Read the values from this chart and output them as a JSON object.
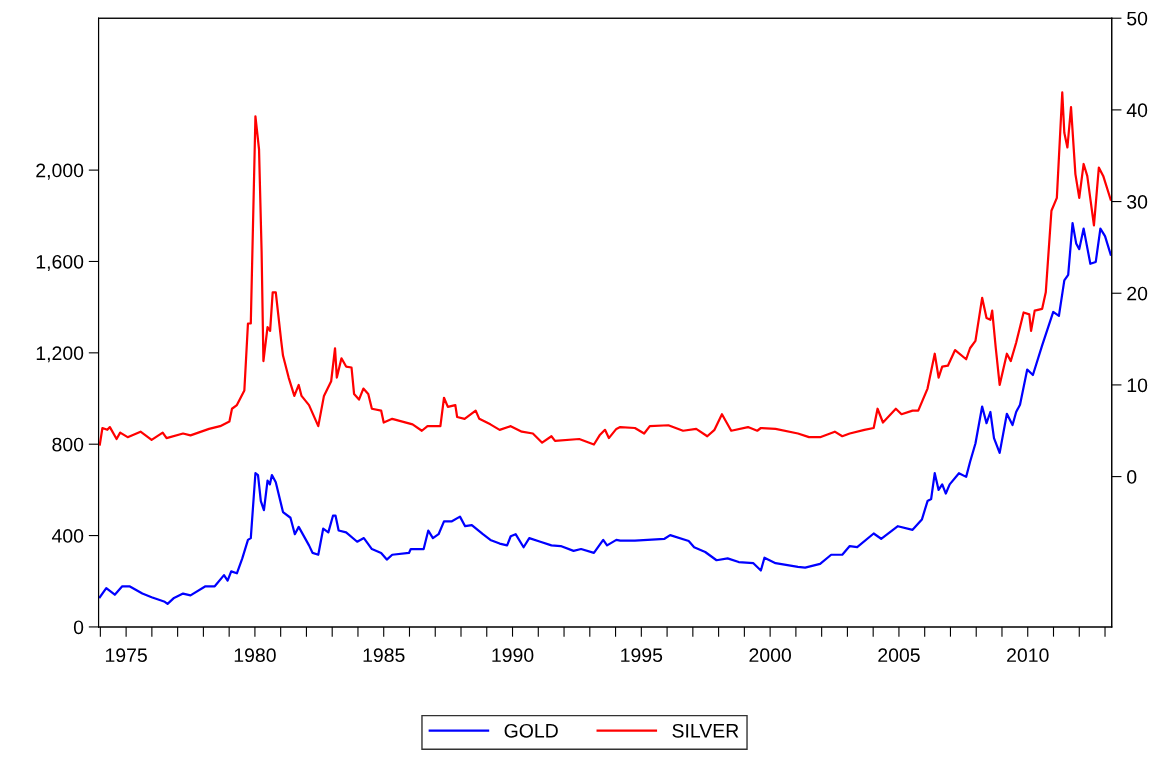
{
  "chart_data": {
    "type": "line",
    "xlim": [
      1973.93,
      2013.26
    ],
    "xticks": [
      {
        "value": 1974,
        "label": null
      },
      1975,
      {
        "value": 1976,
        "label": null
      },
      {
        "value": 1977,
        "label": null
      },
      {
        "value": 1978,
        "label": null
      },
      {
        "value": 1979,
        "label": null
      },
      1980,
      {
        "value": 1981,
        "label": null
      },
      {
        "value": 1982,
        "label": null
      },
      {
        "value": 1983,
        "label": null
      },
      {
        "value": 1984,
        "label": null
      },
      1985,
      {
        "value": 1986,
        "label": null
      },
      {
        "value": 1987,
        "label": null
      },
      {
        "value": 1988,
        "label": null
      },
      {
        "value": 1989,
        "label": null
      },
      1990,
      {
        "value": 1991,
        "label": null
      },
      {
        "value": 1992,
        "label": null
      },
      {
        "value": 1993,
        "label": null
      },
      {
        "value": 1994,
        "label": null
      },
      1995,
      {
        "value": 1996,
        "label": null
      },
      {
        "value": 1997,
        "label": null
      },
      {
        "value": 1998,
        "label": null
      },
      {
        "value": 1999,
        "label": null
      },
      2000,
      {
        "value": 2001,
        "label": null
      },
      {
        "value": 2002,
        "label": null
      },
      {
        "value": 2003,
        "label": null
      },
      {
        "value": 2004,
        "label": null
      },
      2005,
      {
        "value": 2006,
        "label": null
      },
      {
        "value": 2007,
        "label": null
      },
      {
        "value": 2008,
        "label": null
      },
      {
        "value": 2009,
        "label": null
      },
      2010,
      {
        "value": 2011,
        "label": null
      },
      {
        "value": 2012,
        "label": null
      },
      {
        "value": 2013,
        "label": null
      }
    ],
    "ylim": [
      0,
      2665
    ],
    "yticks": [
      0,
      400,
      800,
      {
        "value": 1200,
        "label": "1,200"
      },
      {
        "value": 1600,
        "label": "1,600"
      },
      {
        "value": 2000,
        "label": "2,000"
      }
    ],
    "y2lim": [
      -16.4,
      50
    ],
    "y2ticks": [
      0,
      10,
      20,
      30,
      40,
      50
    ],
    "grid": false,
    "legend": "bottom",
    "series": [
      {
        "name": "GOLD",
        "color": "#0000ff",
        "x": [
          1973.98,
          1974.23,
          1974.56,
          1974.85,
          1975.13,
          1975.63,
          1975.99,
          1976.5,
          1976.61,
          1976.86,
          1977.21,
          1977.5,
          1978.08,
          1978.44,
          1978.8,
          1978.94,
          1979.08,
          1979.3,
          1979.51,
          1979.73,
          1979.84,
          1980.02,
          1980.12,
          1980.23,
          1980.35,
          1980.49,
          1980.58,
          1980.66,
          1980.81,
          1981.09,
          1981.38,
          1981.55,
          1981.7,
          1982.1,
          1982.24,
          1982.46,
          1982.65,
          1982.85,
          1983.03,
          1983.13,
          1983.25,
          1983.54,
          1983.97,
          1984.23,
          1984.54,
          1984.9,
          1985.12,
          1985.33,
          1985.98,
          1986.05,
          1986.55,
          1986.73,
          1986.91,
          1987.13,
          1987.34,
          1987.63,
          1987.96,
          1988.16,
          1988.42,
          1988.85,
          1989.14,
          1989.5,
          1989.79,
          1989.93,
          1990.12,
          1990.43,
          1990.65,
          1991.08,
          1991.51,
          1991.87,
          1992.37,
          1992.66,
          1993.16,
          1993.52,
          1993.67,
          1994.03,
          1994.18,
          1994.75,
          1995.9,
          1996.12,
          1996.84,
          1997.05,
          1997.48,
          1997.92,
          1998.35,
          1998.78,
          1999.35,
          1999.64,
          1999.78,
          2000.21,
          2001.08,
          2001.36,
          2001.94,
          2002.37,
          2002.8,
          2003.09,
          2003.38,
          2004.02,
          2004.31,
          2004.96,
          2005.53,
          2005.89,
          2006.11,
          2006.25,
          2006.39,
          2006.54,
          2006.68,
          2006.82,
          2006.97,
          2007.33,
          2007.61,
          2007.76,
          2007.97,
          2008.23,
          2008.4,
          2008.55,
          2008.69,
          2008.91,
          2009.19,
          2009.41,
          2009.55,
          2009.7,
          2009.98,
          2010.2,
          2010.56,
          2010.99,
          2011.21,
          2011.42,
          2011.57,
          2011.74,
          2011.88,
          2012.0,
          2012.17,
          2012.43,
          2012.64,
          2012.82,
          2013.0,
          2013.22
        ],
        "values": [
          130,
          170,
          141,
          178,
          178,
          146,
          130,
          110,
          101,
          127,
          146,
          138,
          178,
          178,
          227,
          203,
          243,
          235,
          300,
          381,
          389,
          673,
          665,
          551,
          511,
          641,
          624,
          665,
          633,
          503,
          478,
          406,
          438,
          357,
          324,
          316,
          430,
          414,
          487,
          487,
          422,
          414,
          373,
          389,
          341,
          324,
          295,
          316,
          324,
          341,
          341,
          422,
          389,
          406,
          462,
          462,
          483,
          441,
          446,
          406,
          381,
          365,
          357,
          397,
          406,
          349,
          389,
          373,
          357,
          354,
          333,
          341,
          324,
          381,
          357,
          381,
          378,
          378,
          386,
          402,
          376,
          349,
          328,
          292,
          300,
          284,
          279,
          247,
          303,
          279,
          263,
          260,
          276,
          316,
          316,
          354,
          349,
          409,
          386,
          441,
          425,
          470,
          551,
          560,
          673,
          600,
          624,
          584,
          624,
          673,
          657,
          722,
          803,
          965,
          892,
          941,
          827,
          762,
          933,
          884,
          941,
          973,
          1127,
          1103,
          1233,
          1379,
          1362,
          1517,
          1541,
          1768,
          1679,
          1654,
          1744,
          1590,
          1598,
          1744,
          1711,
          1630
        ]
      },
      {
        "name": "SILVER",
        "color": "#ff0000",
        "axis": "y2",
        "x": [
          1973.98,
          1974.08,
          1974.27,
          1974.37,
          1974.63,
          1974.77,
          1975.06,
          1975.56,
          1975.99,
          1976.42,
          1976.57,
          1977.21,
          1977.5,
          1978.22,
          1978.65,
          1979.01,
          1979.11,
          1979.3,
          1979.59,
          1979.73,
          1979.84,
          1980.02,
          1980.16,
          1980.26,
          1980.33,
          1980.49,
          1980.59,
          1980.69,
          1980.81,
          1981.02,
          1981.09,
          1981.31,
          1981.53,
          1981.7,
          1981.81,
          1982.1,
          1982.46,
          1982.68,
          1982.96,
          1983.11,
          1983.18,
          1983.36,
          1983.54,
          1983.75,
          1983.85,
          1984.04,
          1984.21,
          1984.4,
          1984.54,
          1984.9,
          1985.0,
          1985.33,
          1986.12,
          1986.48,
          1986.7,
          1987.2,
          1987.34,
          1987.49,
          1987.78,
          1987.85,
          1988.14,
          1988.57,
          1988.71,
          1989.14,
          1989.5,
          1989.93,
          1990.36,
          1990.79,
          1991.15,
          1991.51,
          1991.65,
          1992.59,
          1993.16,
          1993.38,
          1993.59,
          1993.74,
          1994.03,
          1994.18,
          1994.75,
          1995.11,
          1995.33,
          1996.05,
          1996.62,
          1997.13,
          1997.56,
          1997.84,
          1998.13,
          1998.49,
          1999.14,
          1999.5,
          1999.64,
          2000.21,
          2001.08,
          2001.51,
          2001.94,
          2002.51,
          2002.8,
          2003.09,
          2003.66,
          2004.02,
          2004.17,
          2004.38,
          2004.88,
          2005.1,
          2005.53,
          2005.75,
          2006.11,
          2006.39,
          2006.54,
          2006.68,
          2006.9,
          2007.18,
          2007.61,
          2007.76,
          2007.97,
          2008.23,
          2008.4,
          2008.55,
          2008.62,
          2008.76,
          2008.91,
          2009.19,
          2009.34,
          2009.55,
          2009.84,
          2010.06,
          2010.13,
          2010.27,
          2010.56,
          2010.7,
          2010.92,
          2011.13,
          2011.34,
          2011.42,
          2011.54,
          2011.68,
          2011.85,
          2012.0,
          2012.17,
          2012.31,
          2012.57,
          2012.76,
          2012.93,
          2013.22
        ],
        "values": [
          3.5,
          5.3,
          5.1,
          5.4,
          4.1,
          4.8,
          4.3,
          4.9,
          4.0,
          4.8,
          4.2,
          4.7,
          4.5,
          5.2,
          5.5,
          6.0,
          7.4,
          7.8,
          9.4,
          16.7,
          16.7,
          39.3,
          35.7,
          24.5,
          12.6,
          16.3,
          15.9,
          20.1,
          20.1,
          14.8,
          13.2,
          10.8,
          8.8,
          10.0,
          8.8,
          7.8,
          5.5,
          8.8,
          10.4,
          14.0,
          10.8,
          12.9,
          12.0,
          11.9,
          9.0,
          8.4,
          9.6,
          9.0,
          7.4,
          7.2,
          5.9,
          6.3,
          5.7,
          5.0,
          5.5,
          5.5,
          8.6,
          7.6,
          7.8,
          6.5,
          6.3,
          7.2,
          6.3,
          5.7,
          5.1,
          5.5,
          4.9,
          4.7,
          3.7,
          4.4,
          3.9,
          4.1,
          3.5,
          4.5,
          5.1,
          4.2,
          5.2,
          5.4,
          5.3,
          4.7,
          5.5,
          5.6,
          5.0,
          5.2,
          4.4,
          5.1,
          6.8,
          5.0,
          5.4,
          5.0,
          5.3,
          5.2,
          4.7,
          4.3,
          4.3,
          4.9,
          4.4,
          4.7,
          5.1,
          5.3,
          7.4,
          5.9,
          7.4,
          6.8,
          7.2,
          7.2,
          9.6,
          13.4,
          10.8,
          12.0,
          12.1,
          13.8,
          12.8,
          14.0,
          14.8,
          19.5,
          17.3,
          17.1,
          18.1,
          14.0,
          10.0,
          13.4,
          12.6,
          14.6,
          17.9,
          17.7,
          15.9,
          18.1,
          18.3,
          20.1,
          29.0,
          30.4,
          41.9,
          37.5,
          35.9,
          40.3,
          33.0,
          30.4,
          34.1,
          32.8,
          27.4,
          33.7,
          32.8,
          30.2
        ]
      }
    ]
  }
}
